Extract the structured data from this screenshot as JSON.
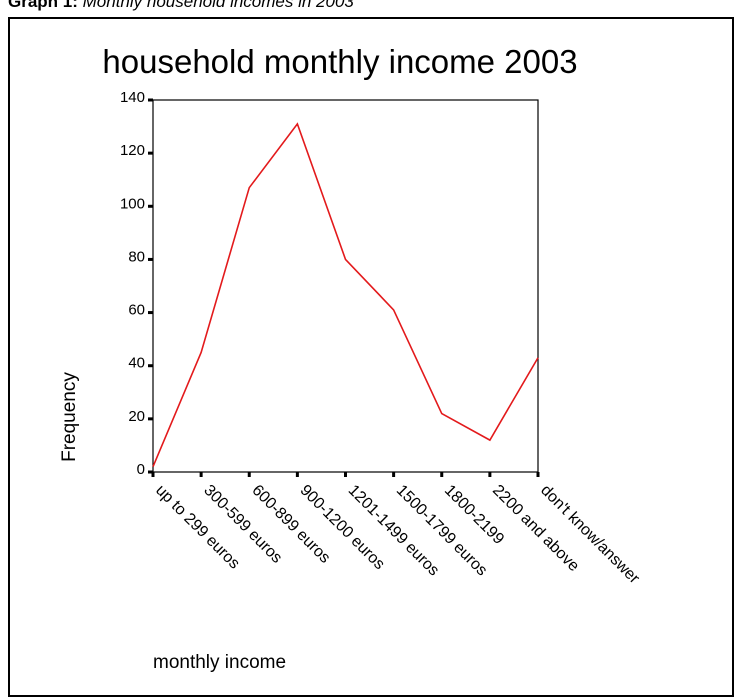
{
  "caption": {
    "label": "Graph 1:",
    "text": "Monthly household incomes in 2003"
  },
  "colors": {
    "line": "#e31a1c",
    "axis": "#000000",
    "frame": "#000000"
  },
  "chart_data": {
    "type": "line",
    "title": "household monthly income 2003",
    "xlabel": "monthly income",
    "ylabel": "Frequency",
    "ylim": [
      0,
      140
    ],
    "yticks": [
      "0",
      "20",
      "40",
      "60",
      "80",
      "100",
      "120",
      "140"
    ],
    "grid": false,
    "categories": [
      "up to 299 euros",
      "300-599 euros",
      "600-899 euros",
      "900-1200 euros",
      "1201-1499 euros",
      "1500-1799 euros",
      "1800-2199",
      "2200 and above",
      "don't know/answer"
    ],
    "series": [
      {
        "values": [
          2,
          45,
          107,
          131,
          80,
          61,
          22,
          12,
          43
        ]
      }
    ]
  }
}
